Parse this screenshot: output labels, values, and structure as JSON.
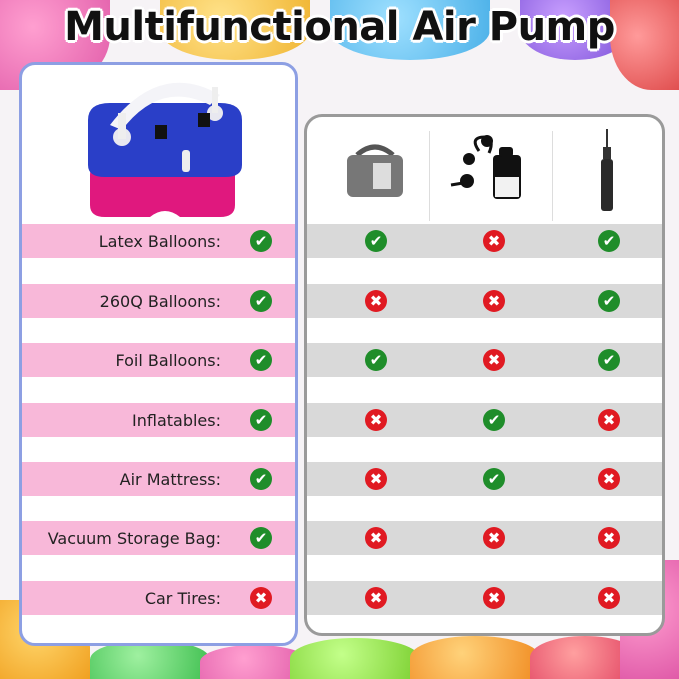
{
  "title": "Multifunctional Air Pump",
  "products": [
    "Double nozzle electric balloon pump (featured)",
    "Electric balloon pump",
    "Electric air pump",
    "Hand pump"
  ],
  "colors": {
    "yes": "#1f8d2a",
    "no": "#e01a22",
    "featured_row": "#f8b8d9",
    "other_row": "#d9d9d9"
  },
  "rows": [
    {
      "label": "Latex Balloons:",
      "featured": "yes",
      "others": [
        "yes",
        "no",
        "yes"
      ]
    },
    {
      "label": "260Q Balloons:",
      "featured": "yes",
      "others": [
        "no",
        "no",
        "yes"
      ]
    },
    {
      "label": "Foil Balloons:",
      "featured": "yes",
      "others": [
        "yes",
        "no",
        "yes"
      ]
    },
    {
      "label": "Inflatables:",
      "featured": "yes",
      "others": [
        "no",
        "yes",
        "no"
      ]
    },
    {
      "label": "Air Mattress:",
      "featured": "yes",
      "others": [
        "no",
        "yes",
        "no"
      ]
    },
    {
      "label": "Vacuum Storage Bag:",
      "featured": "yes",
      "others": [
        "no",
        "no",
        "no"
      ]
    },
    {
      "label": "Car Tires:",
      "featured": "no",
      "others": [
        "no",
        "no",
        "no"
      ]
    }
  ]
}
